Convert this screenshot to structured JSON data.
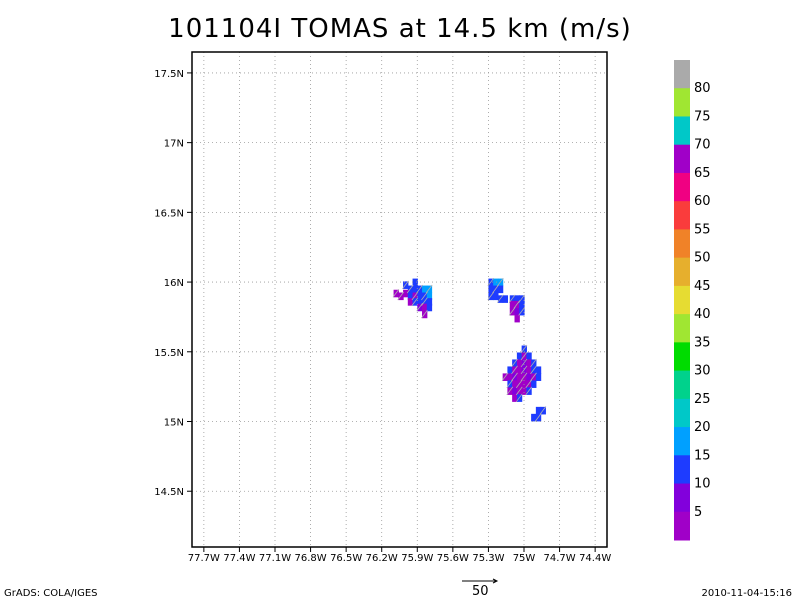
{
  "title": "101104I TOMAS at 14.5 km (m/s)",
  "footer": {
    "left": "GrADS: COLA/IGES",
    "right": "2010-11-04-15:16",
    "vector_scale_label": "50"
  },
  "map": {
    "lon_range": [
      -77.8,
      -74.3
    ],
    "lat_range": [
      14.1,
      17.65
    ],
    "x_ticks": [
      {
        "v": -77.7,
        "label": "77.7W"
      },
      {
        "v": -77.4,
        "label": "77.4W"
      },
      {
        "v": -77.1,
        "label": "77.1W"
      },
      {
        "v": -76.8,
        "label": "76.8W"
      },
      {
        "v": -76.5,
        "label": "76.5W"
      },
      {
        "v": -76.2,
        "label": "76.2W"
      },
      {
        "v": -75.9,
        "label": "75.9W"
      },
      {
        "v": -75.6,
        "label": "75.6W"
      },
      {
        "v": -75.3,
        "label": "75.3W"
      },
      {
        "v": -75.0,
        "label": "75W"
      },
      {
        "v": -74.7,
        "label": "74.7W"
      },
      {
        "v": -74.4,
        "label": "74.4W"
      }
    ],
    "y_ticks": [
      {
        "v": 14.5,
        "label": "14.5N"
      },
      {
        "v": 15.0,
        "label": "15N"
      },
      {
        "v": 15.5,
        "label": "15.5N"
      },
      {
        "v": 16.0,
        "label": "16N"
      },
      {
        "v": 16.5,
        "label": "16.5N"
      },
      {
        "v": 17.0,
        "label": "17N"
      },
      {
        "v": 17.5,
        "label": "17.5N"
      }
    ],
    "cells": [
      {
        "lon": -75.96,
        "lat": 15.95,
        "c": "#1e3cff"
      },
      {
        "lon": -75.92,
        "lat": 15.95,
        "c": "#1e3cff"
      },
      {
        "lon": -75.88,
        "lat": 15.95,
        "c": "#1e3cff"
      },
      {
        "lon": -75.84,
        "lat": 15.95,
        "c": "#00a0ff"
      },
      {
        "lon": -75.8,
        "lat": 15.95,
        "c": "#00a0ff"
      },
      {
        "lon": -76.0,
        "lat": 15.92,
        "c": "#a000c8"
      },
      {
        "lon": -76.04,
        "lat": 15.9,
        "c": "#a000c8"
      },
      {
        "lon": -75.96,
        "lat": 15.9,
        "c": "#1e3cff"
      },
      {
        "lon": -75.92,
        "lat": 15.9,
        "c": "#a000c8"
      },
      {
        "lon": -75.88,
        "lat": 15.9,
        "c": "#1e3cff"
      },
      {
        "lon": -75.84,
        "lat": 15.9,
        "c": "#1e3cff"
      },
      {
        "lon": -75.8,
        "lat": 15.9,
        "c": "#00a0ff"
      },
      {
        "lon": -76.08,
        "lat": 15.92,
        "c": "#a000c8"
      },
      {
        "lon": -75.96,
        "lat": 15.86,
        "c": "#a000c8"
      },
      {
        "lon": -75.92,
        "lat": 15.86,
        "c": "#1e3cff"
      },
      {
        "lon": -75.88,
        "lat": 15.86,
        "c": "#1e3cff"
      },
      {
        "lon": -75.84,
        "lat": 15.86,
        "c": "#1e3cff"
      },
      {
        "lon": -75.8,
        "lat": 15.86,
        "c": "#1e3cff"
      },
      {
        "lon": -75.88,
        "lat": 15.82,
        "c": "#8200dc"
      },
      {
        "lon": -75.84,
        "lat": 15.82,
        "c": "#a000c8"
      },
      {
        "lon": -75.84,
        "lat": 15.77,
        "c": "#a000c8"
      },
      {
        "lon": -75.8,
        "lat": 15.82,
        "c": "#1e3cff"
      },
      {
        "lon": -76.0,
        "lat": 15.98,
        "c": "#1e3cff"
      },
      {
        "lon": -75.92,
        "lat": 16.0,
        "c": "#1e3cff"
      },
      {
        "lon": -75.28,
        "lat": 16.0,
        "c": "#1e3cff"
      },
      {
        "lon": -75.24,
        "lat": 16.0,
        "c": "#00a0ff"
      },
      {
        "lon": -75.2,
        "lat": 16.0,
        "c": "#00a0ff"
      },
      {
        "lon": -75.28,
        "lat": 15.95,
        "c": "#1e3cff"
      },
      {
        "lon": -75.24,
        "lat": 15.95,
        "c": "#1e3cff"
      },
      {
        "lon": -75.2,
        "lat": 15.95,
        "c": "#1e3cff"
      },
      {
        "lon": -75.28,
        "lat": 15.9,
        "c": "#1e3cff"
      },
      {
        "lon": -75.24,
        "lat": 15.9,
        "c": "#1e3cff"
      },
      {
        "lon": -75.2,
        "lat": 15.88,
        "c": "#1e3cff"
      },
      {
        "lon": -75.16,
        "lat": 15.88,
        "c": "#1e3cff"
      },
      {
        "lon": -75.1,
        "lat": 15.88,
        "c": "#1e3cff"
      },
      {
        "lon": -75.06,
        "lat": 15.88,
        "c": "#1e3cff"
      },
      {
        "lon": -75.02,
        "lat": 15.88,
        "c": "#1e3cff"
      },
      {
        "lon": -75.1,
        "lat": 15.84,
        "c": "#a000c8"
      },
      {
        "lon": -75.06,
        "lat": 15.84,
        "c": "#a000c8"
      },
      {
        "lon": -75.02,
        "lat": 15.84,
        "c": "#1e3cff"
      },
      {
        "lon": -75.1,
        "lat": 15.79,
        "c": "#a000c8"
      },
      {
        "lon": -75.06,
        "lat": 15.79,
        "c": "#8200dc"
      },
      {
        "lon": -75.02,
        "lat": 15.79,
        "c": "#1e3cff"
      },
      {
        "lon": -75.06,
        "lat": 15.74,
        "c": "#a000c8"
      },
      {
        "lon": -75.0,
        "lat": 15.52,
        "c": "#1e3cff"
      },
      {
        "lon": -75.04,
        "lat": 15.47,
        "c": "#1e3cff"
      },
      {
        "lon": -75.0,
        "lat": 15.47,
        "c": "#a000c8"
      },
      {
        "lon": -74.96,
        "lat": 15.47,
        "c": "#1e3cff"
      },
      {
        "lon": -75.08,
        "lat": 15.42,
        "c": "#1e3cff"
      },
      {
        "lon": -75.04,
        "lat": 15.42,
        "c": "#a000c8"
      },
      {
        "lon": -75.0,
        "lat": 15.42,
        "c": "#8200dc"
      },
      {
        "lon": -74.96,
        "lat": 15.42,
        "c": "#a000c8"
      },
      {
        "lon": -74.92,
        "lat": 15.42,
        "c": "#1e3cff"
      },
      {
        "lon": -75.12,
        "lat": 15.37,
        "c": "#1e3cff"
      },
      {
        "lon": -75.08,
        "lat": 15.37,
        "c": "#a000c8"
      },
      {
        "lon": -75.04,
        "lat": 15.37,
        "c": "#a000c8"
      },
      {
        "lon": -75.0,
        "lat": 15.37,
        "c": "#8200dc"
      },
      {
        "lon": -74.96,
        "lat": 15.37,
        "c": "#a000c8"
      },
      {
        "lon": -74.92,
        "lat": 15.37,
        "c": "#1e3cff"
      },
      {
        "lon": -74.88,
        "lat": 15.37,
        "c": "#1e3cff"
      },
      {
        "lon": -75.16,
        "lat": 15.32,
        "c": "#a000c8"
      },
      {
        "lon": -75.12,
        "lat": 15.32,
        "c": "#a000c8"
      },
      {
        "lon": -75.08,
        "lat": 15.32,
        "c": "#8200dc"
      },
      {
        "lon": -75.04,
        "lat": 15.32,
        "c": "#a000c8"
      },
      {
        "lon": -75.0,
        "lat": 15.32,
        "c": "#a000c8"
      },
      {
        "lon": -74.96,
        "lat": 15.32,
        "c": "#8200dc"
      },
      {
        "lon": -74.92,
        "lat": 15.32,
        "c": "#a000c8"
      },
      {
        "lon": -74.88,
        "lat": 15.32,
        "c": "#1e3cff"
      },
      {
        "lon": -75.12,
        "lat": 15.27,
        "c": "#1e3cff"
      },
      {
        "lon": -75.08,
        "lat": 15.27,
        "c": "#a000c8"
      },
      {
        "lon": -75.04,
        "lat": 15.27,
        "c": "#a000c8"
      },
      {
        "lon": -75.0,
        "lat": 15.27,
        "c": "#a000c8"
      },
      {
        "lon": -74.96,
        "lat": 15.27,
        "c": "#a000c8"
      },
      {
        "lon": -74.92,
        "lat": 15.27,
        "c": "#1e3cff"
      },
      {
        "lon": -75.12,
        "lat": 15.22,
        "c": "#a000c8"
      },
      {
        "lon": -75.08,
        "lat": 15.22,
        "c": "#8200dc"
      },
      {
        "lon": -75.04,
        "lat": 15.22,
        "c": "#a000c8"
      },
      {
        "lon": -75.0,
        "lat": 15.22,
        "c": "#a000c8"
      },
      {
        "lon": -74.96,
        "lat": 15.22,
        "c": "#1e3cff"
      },
      {
        "lon": -75.08,
        "lat": 15.17,
        "c": "#a000c8"
      },
      {
        "lon": -75.04,
        "lat": 15.17,
        "c": "#1e3cff"
      },
      {
        "lon": -74.88,
        "lat": 15.08,
        "c": "#1e3cff"
      },
      {
        "lon": -74.84,
        "lat": 15.08,
        "c": "#1e3cff"
      },
      {
        "lon": -74.92,
        "lat": 15.03,
        "c": "#1e3cff"
      },
      {
        "lon": -74.88,
        "lat": 15.03,
        "c": "#1e3cff"
      }
    ]
  },
  "colorbar": {
    "labels": [
      "5",
      "10",
      "15",
      "20",
      "25",
      "30",
      "35",
      "40",
      "45",
      "50",
      "55",
      "60",
      "65",
      "70",
      "75",
      "80"
    ],
    "colors": [
      "#a000c8",
      "#8200dc",
      "#1e3cff",
      "#00a0ff",
      "#00c8c8",
      "#00d28c",
      "#00dc00",
      "#a0e632",
      "#e6dc32",
      "#e6af2d",
      "#f08228",
      "#fa3c3c",
      "#f00082",
      "#a000c8",
      "#00c8c8",
      "#a0e632",
      "#aaaaaa"
    ]
  }
}
